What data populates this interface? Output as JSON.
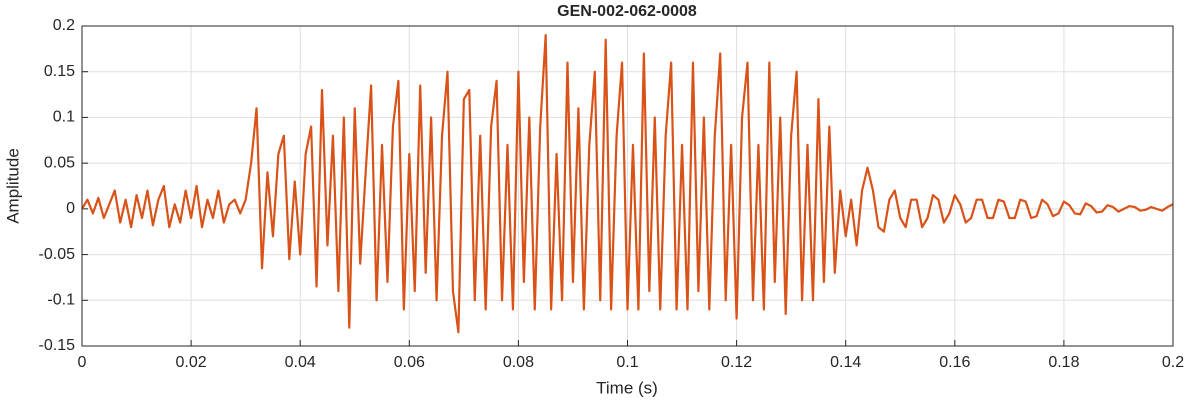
{
  "chart_data": {
    "type": "line",
    "title": "GEN-002-062-0008",
    "x_label": "Time (s)",
    "y_label": "Amplitude",
    "color": "#d95319",
    "grid": true,
    "xlim": [
      0,
      0.2
    ],
    "xticks": [
      0,
      0.02,
      0.04,
      0.06,
      0.08,
      0.1,
      0.12,
      0.14,
      0.16,
      0.18,
      0.2
    ],
    "ylim": [
      -0.15,
      0.2
    ],
    "yticks": [
      -0.15,
      -0.1,
      -0.05,
      0,
      0.05,
      0.1,
      0.15,
      0.2
    ],
    "x": [
      0,
      0.001,
      0.002,
      0.003,
      0.004,
      0.005,
      0.006,
      0.007,
      0.008,
      0.009,
      0.01,
      0.011,
      0.012,
      0.013,
      0.014,
      0.015,
      0.016,
      0.017,
      0.018,
      0.019,
      0.02,
      0.021,
      0.022,
      0.023,
      0.024,
      0.025,
      0.026,
      0.027,
      0.028,
      0.029,
      0.03,
      0.031,
      0.032,
      0.033,
      0.034,
      0.035,
      0.036,
      0.037,
      0.038,
      0.039,
      0.04,
      0.041,
      0.042,
      0.043,
      0.044,
      0.045,
      0.046,
      0.047,
      0.048,
      0.049,
      0.05,
      0.051,
      0.052,
      0.053,
      0.054,
      0.055,
      0.056,
      0.057,
      0.058,
      0.059,
      0.06,
      0.061,
      0.062,
      0.063,
      0.064,
      0.065,
      0.066,
      0.067,
      0.068,
      0.069,
      0.07,
      0.071,
      0.072,
      0.073,
      0.074,
      0.075,
      0.076,
      0.077,
      0.078,
      0.079,
      0.08,
      0.081,
      0.082,
      0.083,
      0.084,
      0.085,
      0.086,
      0.087,
      0.088,
      0.089,
      0.09,
      0.091,
      0.092,
      0.093,
      0.094,
      0.095,
      0.096,
      0.097,
      0.098,
      0.099,
      0.1,
      0.101,
      0.102,
      0.103,
      0.104,
      0.105,
      0.106,
      0.107,
      0.108,
      0.109,
      0.11,
      0.111,
      0.112,
      0.113,
      0.114,
      0.115,
      0.116,
      0.117,
      0.118,
      0.119,
      0.12,
      0.121,
      0.122,
      0.123,
      0.124,
      0.125,
      0.126,
      0.127,
      0.128,
      0.129,
      0.13,
      0.131,
      0.132,
      0.133,
      0.134,
      0.135,
      0.136,
      0.137,
      0.138,
      0.139,
      0.14,
      0.141,
      0.142,
      0.143,
      0.144,
      0.145,
      0.146,
      0.147,
      0.148,
      0.149,
      0.15,
      0.151,
      0.152,
      0.153,
      0.154,
      0.155,
      0.156,
      0.157,
      0.158,
      0.159,
      0.16,
      0.161,
      0.162,
      0.163,
      0.164,
      0.165,
      0.166,
      0.167,
      0.168,
      0.169,
      0.17,
      0.171,
      0.172,
      0.173,
      0.174,
      0.175,
      0.176,
      0.177,
      0.178,
      0.179,
      0.18,
      0.181,
      0.182,
      0.183,
      0.184,
      0.185,
      0.186,
      0.187,
      0.188,
      0.189,
      0.19,
      0.191,
      0.192,
      0.193,
      0.194,
      0.195,
      0.196,
      0.197,
      0.198,
      0.199,
      0.2
    ],
    "values": [
      0,
      0.01,
      -0.005,
      0.012,
      -0.01,
      0.005,
      0.02,
      -0.015,
      0.01,
      -0.02,
      0.015,
      -0.01,
      0.02,
      -0.018,
      0.01,
      0.025,
      -0.02,
      0.005,
      -0.015,
      0.02,
      -0.01,
      0.025,
      -0.02,
      0.01,
      -0.01,
      0.02,
      -0.015,
      0.005,
      0.01,
      -0.005,
      0.01,
      0.05,
      0.11,
      -0.065,
      0.04,
      -0.03,
      0.06,
      0.08,
      -0.055,
      0.03,
      -0.05,
      0.06,
      0.09,
      -0.085,
      0.13,
      -0.04,
      0.08,
      -0.09,
      0.1,
      -0.13,
      0.11,
      -0.06,
      0.04,
      0.135,
      -0.1,
      0.07,
      -0.08,
      0.09,
      0.14,
      -0.11,
      0.06,
      -0.09,
      0.135,
      -0.07,
      0.1,
      -0.1,
      0.08,
      0.15,
      -0.09,
      -0.135,
      0.12,
      0.13,
      -0.1,
      0.08,
      -0.11,
      0.09,
      0.14,
      -0.1,
      0.07,
      -0.11,
      0.15,
      -0.08,
      0.1,
      -0.11,
      0.09,
      0.19,
      -0.11,
      0.06,
      -0.1,
      0.16,
      -0.08,
      0.11,
      -0.11,
      0.07,
      0.15,
      -0.1,
      0.185,
      -0.11,
      0.08,
      0.16,
      -0.11,
      0.07,
      -0.11,
      0.17,
      -0.09,
      0.1,
      -0.11,
      0.08,
      0.16,
      -0.11,
      0.07,
      -0.11,
      0.16,
      -0.09,
      0.1,
      -0.11,
      0.08,
      0.17,
      -0.1,
      0.07,
      -0.12,
      0.1,
      0.16,
      -0.1,
      0.07,
      -0.11,
      0.16,
      -0.08,
      0.1,
      -0.115,
      0.08,
      0.15,
      -0.1,
      0.07,
      -0.1,
      0.12,
      -0.08,
      0.09,
      -0.07,
      0.02,
      -0.03,
      0.01,
      -0.04,
      0.02,
      0.045,
      0.02,
      -0.02,
      -0.025,
      0.01,
      0.02,
      -0.01,
      -0.02,
      0.01,
      0.01,
      -0.02,
      -0.01,
      0.015,
      0.01,
      -0.015,
      -0.005,
      0.015,
      0.005,
      -0.015,
      -0.01,
      0.01,
      0.01,
      -0.01,
      -0.01,
      0.01,
      0.008,
      -0.01,
      -0.01,
      0.01,
      0.008,
      -0.01,
      -0.008,
      0.01,
      0.005,
      -0.008,
      -0.005,
      0.008,
      0.004,
      -0.005,
      -0.006,
      0.006,
      0.003,
      -0.004,
      -0.003,
      0.004,
      0.002,
      -0.003,
      0,
      0.003,
      0.002,
      -0.002,
      -0.001,
      0.002,
      0,
      -0.002,
      0.002,
      0.005
    ]
  }
}
